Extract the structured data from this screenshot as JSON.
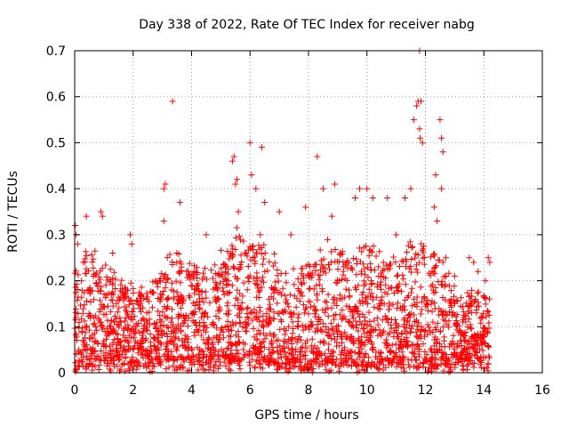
{
  "chart_data": {
    "type": "scatter",
    "title": "Day 338 of 2022, Rate Of TEC Index for receiver nabg",
    "xlabel": "GPS time / hours",
    "ylabel": "ROTI / TECUs",
    "xlim": [
      0,
      16
    ],
    "ylim": [
      0,
      0.7
    ],
    "x_ticks": [
      "0",
      "2",
      "4",
      "6",
      "8",
      "10",
      "12",
      "14",
      "16"
    ],
    "y_ticks": [
      "0",
      "0.1",
      "0.2",
      "0.3",
      "0.4",
      "0.5",
      "0.6",
      "0.7"
    ],
    "grid": true,
    "marker": "+",
    "color": "#ff0000",
    "series": [
      {
        "points": [
          [
            0.02,
            0.32
          ],
          [
            0.05,
            0.3
          ],
          [
            0.1,
            0.28
          ],
          [
            0.3,
            0.24
          ],
          [
            0.4,
            0.34
          ],
          [
            0.9,
            0.35
          ],
          [
            0.95,
            0.34
          ],
          [
            1.3,
            0.26
          ],
          [
            1.9,
            0.3
          ],
          [
            1.95,
            0.28
          ],
          [
            3.05,
            0.4
          ],
          [
            3.1,
            0.41
          ],
          [
            3.35,
            0.59
          ],
          [
            3.05,
            0.33
          ],
          [
            3.6,
            0.37
          ],
          [
            4.5,
            0.3
          ],
          [
            5.4,
            0.46
          ],
          [
            5.45,
            0.47
          ],
          [
            5.5,
            0.41
          ],
          [
            5.55,
            0.42
          ],
          [
            5.6,
            0.35
          ],
          [
            6.0,
            0.5
          ],
          [
            6.05,
            0.43
          ],
          [
            6.2,
            0.4
          ],
          [
            6.4,
            0.49
          ],
          [
            6.5,
            0.37
          ],
          [
            6.35,
            0.3
          ],
          [
            7.0,
            0.35
          ],
          [
            7.4,
            0.3
          ],
          [
            7.9,
            0.36
          ],
          [
            8.3,
            0.47
          ],
          [
            8.5,
            0.4
          ],
          [
            8.9,
            0.41
          ],
          [
            8.8,
            0.34
          ],
          [
            9.6,
            0.38
          ],
          [
            9.75,
            0.4
          ],
          [
            10.0,
            0.4
          ],
          [
            10.2,
            0.38
          ],
          [
            10.7,
            0.38
          ],
          [
            11.0,
            0.3
          ],
          [
            11.3,
            0.38
          ],
          [
            11.5,
            0.4
          ],
          [
            11.7,
            0.58
          ],
          [
            11.75,
            0.59
          ],
          [
            11.8,
            0.7
          ],
          [
            11.85,
            0.59
          ],
          [
            11.6,
            0.55
          ],
          [
            11.8,
            0.53
          ],
          [
            11.82,
            0.51
          ],
          [
            11.9,
            0.5
          ],
          [
            12.3,
            0.36
          ],
          [
            12.35,
            0.43
          ],
          [
            12.5,
            0.55
          ],
          [
            12.55,
            0.51
          ],
          [
            12.6,
            0.48
          ],
          [
            12.55,
            0.4
          ],
          [
            12.4,
            0.33
          ],
          [
            12.7,
            0.25
          ],
          [
            13.0,
            0.21
          ],
          [
            13.5,
            0.25
          ],
          [
            13.65,
            0.24
          ],
          [
            13.8,
            0.22
          ],
          [
            14.05,
            0.2
          ],
          [
            14.15,
            0.25
          ],
          [
            14.2,
            0.24
          ]
        ],
        "band": {
          "x_range": [
            0,
            14.2
          ],
          "y_floor": [
            0.0,
            0.03
          ],
          "y_ceiling_by_hour": [
            [
              0.0,
              0.22
            ],
            [
              0.5,
              0.26
            ],
            [
              1.0,
              0.23
            ],
            [
              1.5,
              0.2
            ],
            [
              2.0,
              0.17
            ],
            [
              2.5,
              0.16
            ],
            [
              3.0,
              0.22
            ],
            [
              3.5,
              0.24
            ],
            [
              4.0,
              0.21
            ],
            [
              4.5,
              0.22
            ],
            [
              5.0,
              0.24
            ],
            [
              5.5,
              0.3
            ],
            [
              6.0,
              0.28
            ],
            [
              6.5,
              0.26
            ],
            [
              7.0,
              0.22
            ],
            [
              7.5,
              0.2
            ],
            [
              8.0,
              0.22
            ],
            [
              8.5,
              0.27
            ],
            [
              9.0,
              0.26
            ],
            [
              9.5,
              0.24
            ],
            [
              10.0,
              0.27
            ],
            [
              10.5,
              0.25
            ],
            [
              11.0,
              0.23
            ],
            [
              11.5,
              0.27
            ],
            [
              12.0,
              0.26
            ],
            [
              12.5,
              0.25
            ],
            [
              13.0,
              0.18
            ],
            [
              13.5,
              0.16
            ],
            [
              14.0,
              0.17
            ],
            [
              14.2,
              0.15
            ]
          ]
        }
      }
    ]
  }
}
